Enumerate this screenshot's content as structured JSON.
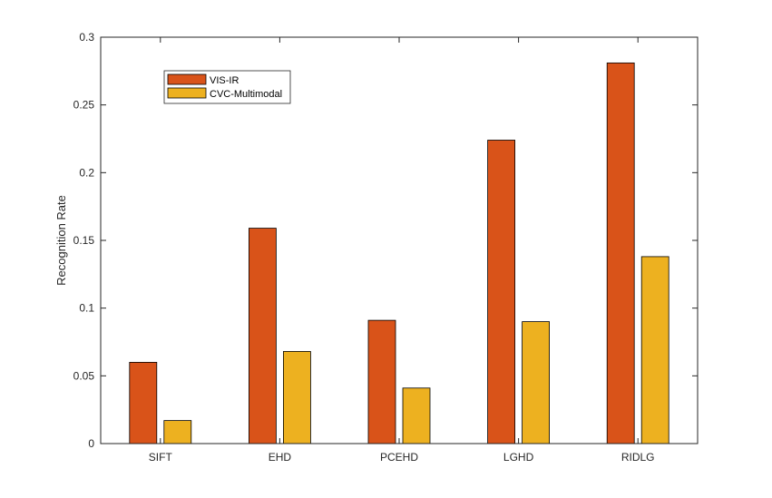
{
  "chart_data": {
    "type": "bar",
    "title": "",
    "xlabel": "",
    "ylabel": "Recognition Rate",
    "categories": [
      "SIFT",
      "EHD",
      "PCEHD",
      "LGHD",
      "RIDLG"
    ],
    "series": [
      {
        "name": "VIS-IR",
        "color": "#d95319",
        "values": [
          0.06,
          0.159,
          0.091,
          0.224,
          0.281
        ]
      },
      {
        "name": "CVC-Multimodal",
        "color": "#edb120",
        "values": [
          0.017,
          0.068,
          0.041,
          0.09,
          0.138
        ]
      }
    ],
    "ylim": [
      0,
      0.3
    ],
    "yticks": [
      0,
      0.05,
      0.1,
      0.15,
      0.2,
      0.25,
      0.3
    ],
    "ytick_labels": [
      "0",
      "0.05",
      "0.1",
      "0.15",
      "0.2",
      "0.25",
      "0.3"
    ],
    "grid": false,
    "legend_position": "top-left"
  }
}
